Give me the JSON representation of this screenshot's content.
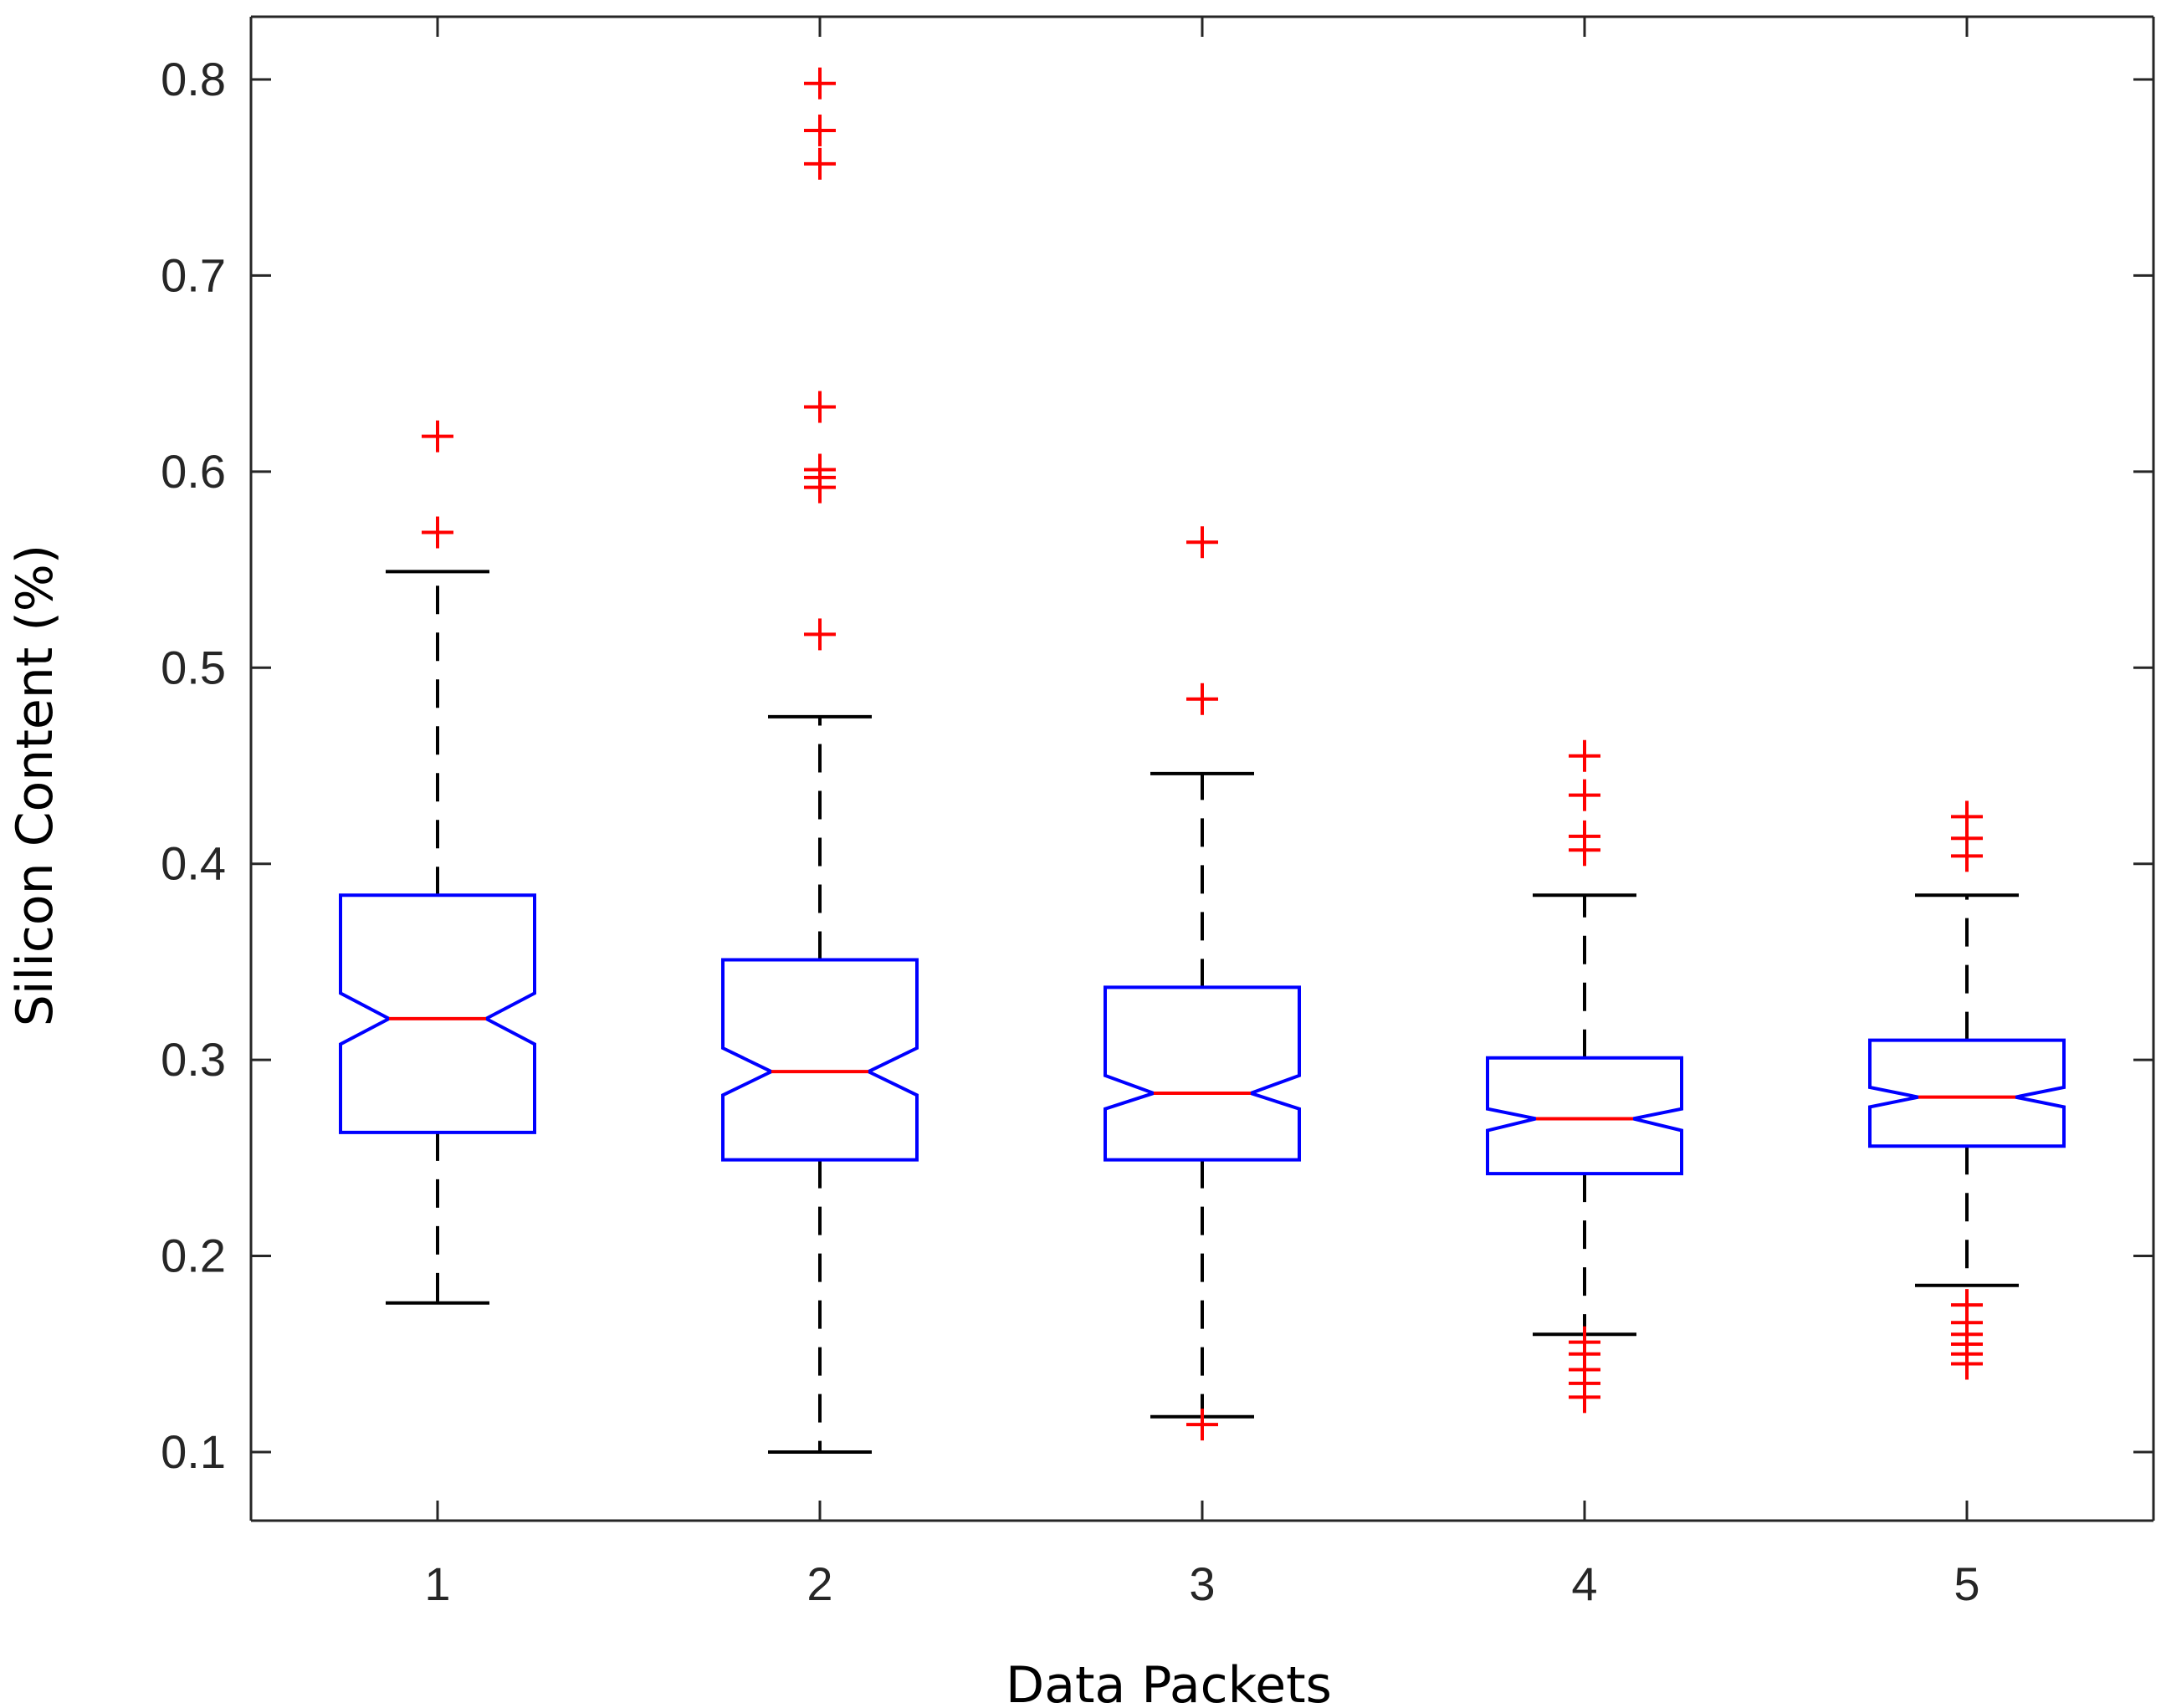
{
  "chart_data": {
    "type": "box",
    "title": "",
    "xlabel": "Data Packets",
    "ylabel": "Silicon Content (%)",
    "ylim": [
      0.065,
      0.832
    ],
    "yticks": [
      0.1,
      0.2,
      0.3,
      0.4,
      0.5,
      0.6,
      0.7,
      0.8
    ],
    "yticklabels": [
      "0.1",
      "0.2",
      "0.3",
      "0.4",
      "0.5",
      "0.6",
      "0.7",
      "0.8"
    ],
    "categories": [
      "1",
      "2",
      "3",
      "4",
      "5"
    ],
    "notched": true,
    "grid": false,
    "legend": "none",
    "colors": {
      "box": "#0000ff",
      "median": "#ff0000",
      "whisker": "#000000",
      "outlier": "#ff0000",
      "axis": "#262626"
    },
    "boxes": [
      {
        "category": "1",
        "lower_whisker": 0.176,
        "q1": 0.263,
        "median": 0.321,
        "q3": 0.384,
        "upper_whisker": 0.549,
        "notch_low": 0.308,
        "notch_high": 0.334,
        "outliers": [
          0.569,
          0.618
        ]
      },
      {
        "category": "2",
        "lower_whisker": 0.1,
        "q1": 0.249,
        "median": 0.294,
        "q3": 0.351,
        "upper_whisker": 0.475,
        "notch_low": 0.282,
        "notch_high": 0.306,
        "outliers": [
          0.517,
          0.592,
          0.597,
          0.601,
          0.633,
          0.757,
          0.774,
          0.798
        ]
      },
      {
        "category": "3",
        "lower_whisker": 0.118,
        "q1": 0.249,
        "median": 0.283,
        "q3": 0.337,
        "upper_whisker": 0.446,
        "notch_low": 0.275,
        "notch_high": 0.292,
        "outliers": [
          0.114,
          0.484,
          0.564
        ]
      },
      {
        "category": "4",
        "lower_whisker": 0.16,
        "q1": 0.242,
        "median": 0.27,
        "q3": 0.301,
        "upper_whisker": 0.384,
        "notch_low": 0.264,
        "notch_high": 0.275,
        "outliers": [
          0.128,
          0.135,
          0.142,
          0.15,
          0.156,
          0.407,
          0.414,
          0.435,
          0.455
        ]
      },
      {
        "category": "5",
        "lower_whisker": 0.185,
        "q1": 0.256,
        "median": 0.281,
        "q3": 0.31,
        "upper_whisker": 0.384,
        "notch_low": 0.276,
        "notch_high": 0.286,
        "outliers": [
          0.145,
          0.15,
          0.155,
          0.16,
          0.166,
          0.175,
          0.404,
          0.413,
          0.424
        ]
      }
    ]
  }
}
